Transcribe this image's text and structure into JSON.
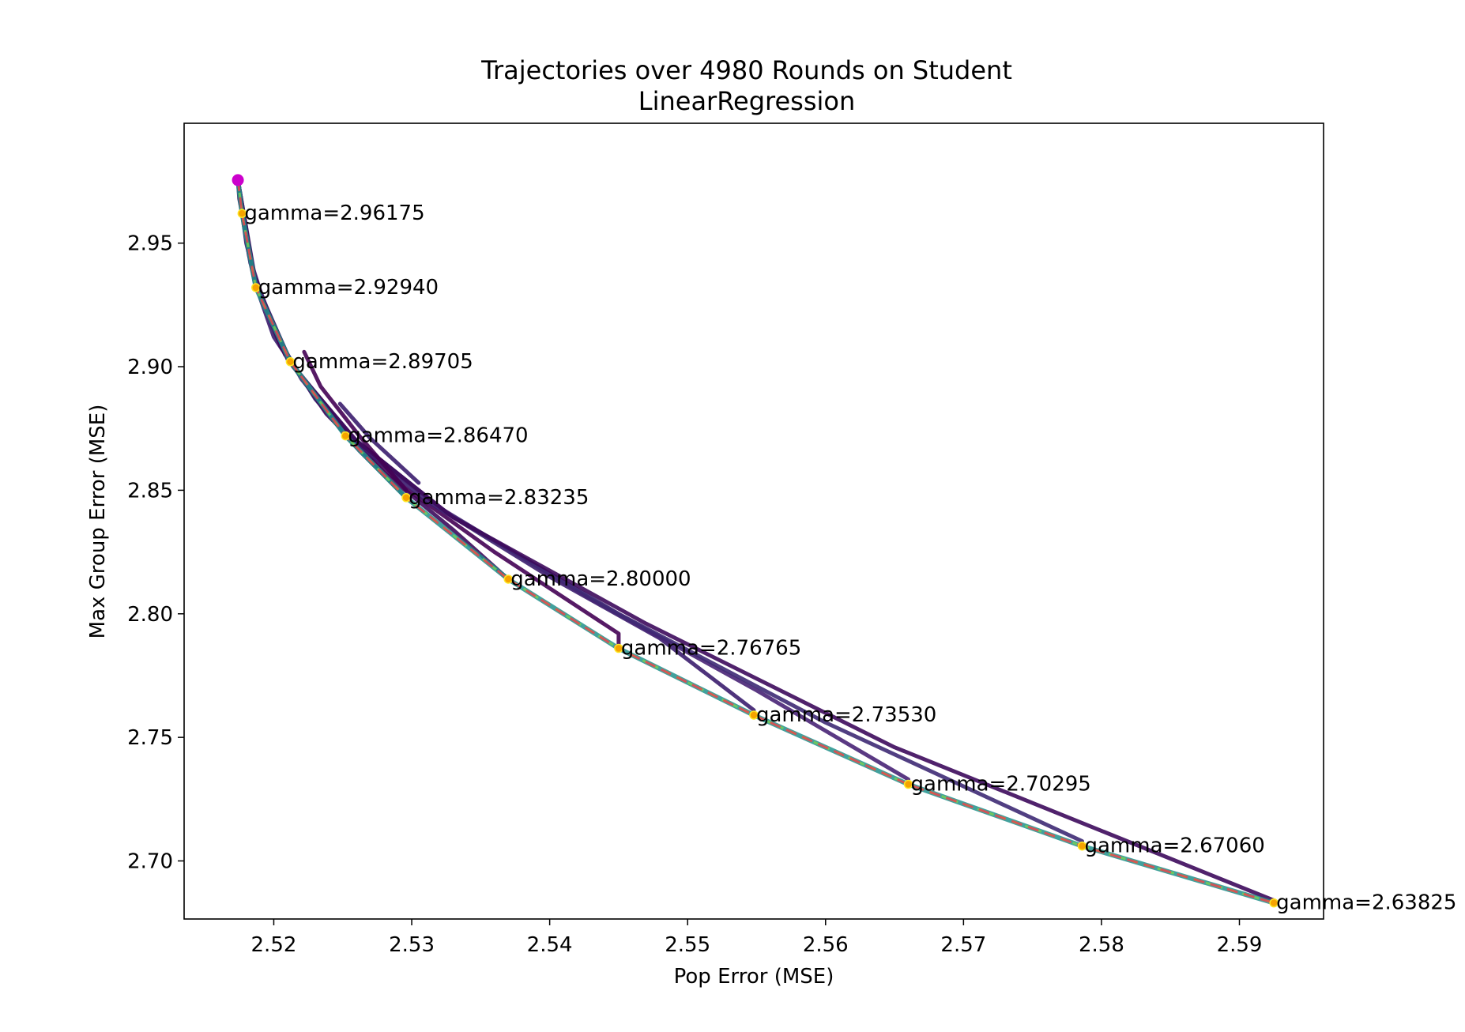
{
  "chart_data": {
    "type": "line",
    "title": "Trajectories over 4980 Rounds on Student\nLinearRegression",
    "title_lines": [
      "Trajectories over 4980 Rounds on Student",
      "LinearRegression"
    ],
    "xlabel": "Pop Error (MSE)",
    "ylabel": "Max Group Error (MSE)",
    "xlim": [
      2.5135,
      2.5961
    ],
    "ylim": [
      2.6765,
      2.9985
    ],
    "xticks": [
      2.52,
      2.53,
      2.54,
      2.55,
      2.56,
      2.57,
      2.58,
      2.59
    ],
    "xtick_labels": [
      "2.52",
      "2.53",
      "2.54",
      "2.55",
      "2.56",
      "2.57",
      "2.58",
      "2.59"
    ],
    "yticks": [
      2.7,
      2.75,
      2.8,
      2.85,
      2.9,
      2.95
    ],
    "ytick_labels": [
      "2.70",
      "2.75",
      "2.80",
      "2.85",
      "2.90",
      "2.95"
    ],
    "grid": false,
    "legend": "none",
    "start_point": {
      "x": 2.5174,
      "y": 2.9755,
      "color": "#cc00cc"
    },
    "pareto_frontier": {
      "style": "dashed",
      "color": "#e8484c",
      "points": [
        [
          2.5174,
          2.9755
        ],
        [
          2.5177,
          2.962
        ],
        [
          2.5187,
          2.932
        ],
        [
          2.5212,
          2.902
        ],
        [
          2.5252,
          2.872
        ],
        [
          2.5296,
          2.847
        ],
        [
          2.537,
          2.814
        ],
        [
          2.545,
          2.786
        ],
        [
          2.5548,
          2.759
        ],
        [
          2.566,
          2.731
        ],
        [
          2.5786,
          2.706
        ],
        [
          2.5925,
          2.683
        ]
      ]
    },
    "gamma_endpoints": [
      {
        "gamma": 2.96175,
        "label": "gamma=2.96175",
        "x": 2.5177,
        "y": 2.962
      },
      {
        "gamma": 2.9294,
        "label": "gamma=2.92940",
        "x": 2.5187,
        "y": 2.932
      },
      {
        "gamma": 2.89705,
        "label": "gamma=2.89705",
        "x": 2.5212,
        "y": 2.902
      },
      {
        "gamma": 2.8647,
        "label": "gamma=2.86470",
        "x": 2.5252,
        "y": 2.872
      },
      {
        "gamma": 2.83235,
        "label": "gamma=2.83235",
        "x": 2.5296,
        "y": 2.847
      },
      {
        "gamma": 2.8,
        "label": "gamma=2.80000",
        "x": 2.537,
        "y": 2.814
      },
      {
        "gamma": 2.76765,
        "label": "gamma=2.76765",
        "x": 2.545,
        "y": 2.786
      },
      {
        "gamma": 2.7353,
        "label": "gamma=2.73530",
        "x": 2.5548,
        "y": 2.759
      },
      {
        "gamma": 2.70295,
        "label": "gamma=2.70295",
        "x": 2.566,
        "y": 2.731
      },
      {
        "gamma": 2.6706,
        "label": "gamma=2.67060",
        "x": 2.5786,
        "y": 2.706
      },
      {
        "gamma": 2.63825,
        "label": "gamma=2.63825",
        "x": 2.5925,
        "y": 2.683
      }
    ],
    "trajectories": [
      {
        "points": [
          [
            2.5174,
            2.9755
          ],
          [
            2.5175,
            2.968
          ],
          [
            2.5177,
            2.962
          ]
        ]
      },
      {
        "points": [
          [
            2.5174,
            2.9755
          ],
          [
            2.5178,
            2.958
          ],
          [
            2.5182,
            2.945
          ],
          [
            2.5187,
            2.932
          ]
        ]
      },
      {
        "points": [
          [
            2.5174,
            2.9755
          ],
          [
            2.518,
            2.95
          ],
          [
            2.519,
            2.928
          ],
          [
            2.52,
            2.912
          ],
          [
            2.5212,
            2.902
          ]
        ]
      },
      {
        "points": [
          [
            2.5174,
            2.9755
          ],
          [
            2.5182,
            2.945
          ],
          [
            2.5198,
            2.917
          ],
          [
            2.522,
            2.895
          ],
          [
            2.5236,
            2.884
          ],
          [
            2.5252,
            2.872
          ]
        ]
      },
      {
        "points": [
          [
            2.5174,
            2.9755
          ],
          [
            2.5183,
            2.942
          ],
          [
            2.5202,
            2.912
          ],
          [
            2.523,
            2.887
          ],
          [
            2.5262,
            2.866
          ],
          [
            2.5296,
            2.847
          ]
        ]
      },
      {
        "points": [
          [
            2.5174,
            2.9755
          ],
          [
            2.5184,
            2.94
          ],
          [
            2.5205,
            2.908
          ],
          [
            2.5238,
            2.881
          ],
          [
            2.528,
            2.857
          ],
          [
            2.533,
            2.834
          ],
          [
            2.537,
            2.814
          ]
        ]
      },
      {
        "points": [
          [
            2.5174,
            2.9755
          ],
          [
            2.5185,
            2.938
          ],
          [
            2.5208,
            2.905
          ],
          [
            2.5245,
            2.877
          ],
          [
            2.5295,
            2.851
          ],
          [
            2.536,
            2.825
          ],
          [
            2.545,
            2.792
          ],
          [
            2.545,
            2.786
          ]
        ]
      },
      {
        "points": [
          [
            2.5174,
            2.9755
          ],
          [
            2.5186,
            2.936
          ],
          [
            2.521,
            2.903
          ],
          [
            2.525,
            2.874
          ],
          [
            2.531,
            2.846
          ],
          [
            2.54,
            2.815
          ],
          [
            2.548,
            2.79
          ],
          [
            2.5548,
            2.761
          ]
        ]
      },
      {
        "points": [
          [
            2.5174,
            2.9755
          ],
          [
            2.5186,
            2.935
          ],
          [
            2.5212,
            2.902
          ],
          [
            2.5255,
            2.872
          ],
          [
            2.532,
            2.843
          ],
          [
            2.543,
            2.806
          ],
          [
            2.555,
            2.769
          ],
          [
            2.566,
            2.733
          ]
        ]
      },
      {
        "points": [
          [
            2.5174,
            2.9755
          ],
          [
            2.5187,
            2.934
          ],
          [
            2.5213,
            2.901
          ],
          [
            2.5258,
            2.871
          ],
          [
            2.5325,
            2.841
          ],
          [
            2.545,
            2.8
          ],
          [
            2.56,
            2.756
          ],
          [
            2.5786,
            2.708
          ]
        ]
      },
      {
        "points": [
          [
            2.5174,
            2.9755
          ],
          [
            2.5187,
            2.933
          ],
          [
            2.5214,
            2.9
          ],
          [
            2.526,
            2.87
          ],
          [
            2.533,
            2.839
          ],
          [
            2.547,
            2.796
          ],
          [
            2.565,
            2.746
          ],
          [
            2.5925,
            2.684
          ]
        ]
      },
      {
        "points": [
          [
            2.5222,
            2.906
          ],
          [
            2.5234,
            2.892
          ],
          [
            2.5262,
            2.872
          ],
          [
            2.5296,
            2.85
          ]
        ]
      },
      {
        "points": [
          [
            2.5248,
            2.885
          ],
          [
            2.527,
            2.871
          ],
          [
            2.5305,
            2.853
          ]
        ]
      }
    ]
  }
}
